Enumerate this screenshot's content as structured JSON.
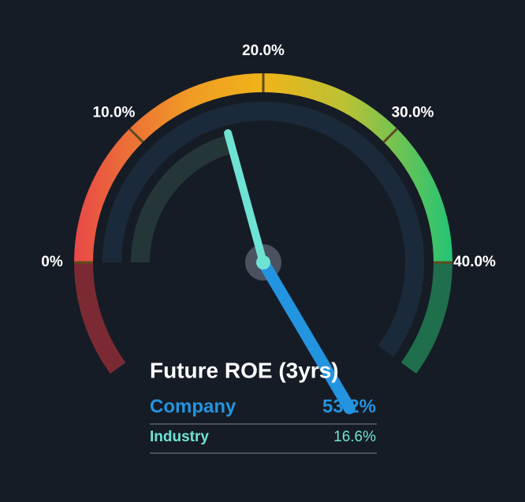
{
  "chart_data": {
    "type": "gauge",
    "title": "Future ROE (3yrs)",
    "ylim": [
      0,
      40
    ],
    "yticks": [
      {
        "value": 0,
        "label": "0%"
      },
      {
        "value": 10,
        "label": "10.0%"
      },
      {
        "value": 20,
        "label": "20.0%"
      },
      {
        "value": 30,
        "label": "30.0%"
      },
      {
        "value": 40,
        "label": "40.0%"
      }
    ],
    "series": [
      {
        "name": "Company",
        "color": "#2394e0",
        "values": [
          53.2
        ],
        "value_labels": [
          "53.2%"
        ]
      },
      {
        "name": "Industry",
        "color": "#6ee3d4",
        "values": [
          16.6
        ],
        "value_labels": [
          "16.6%"
        ]
      }
    ]
  }
}
